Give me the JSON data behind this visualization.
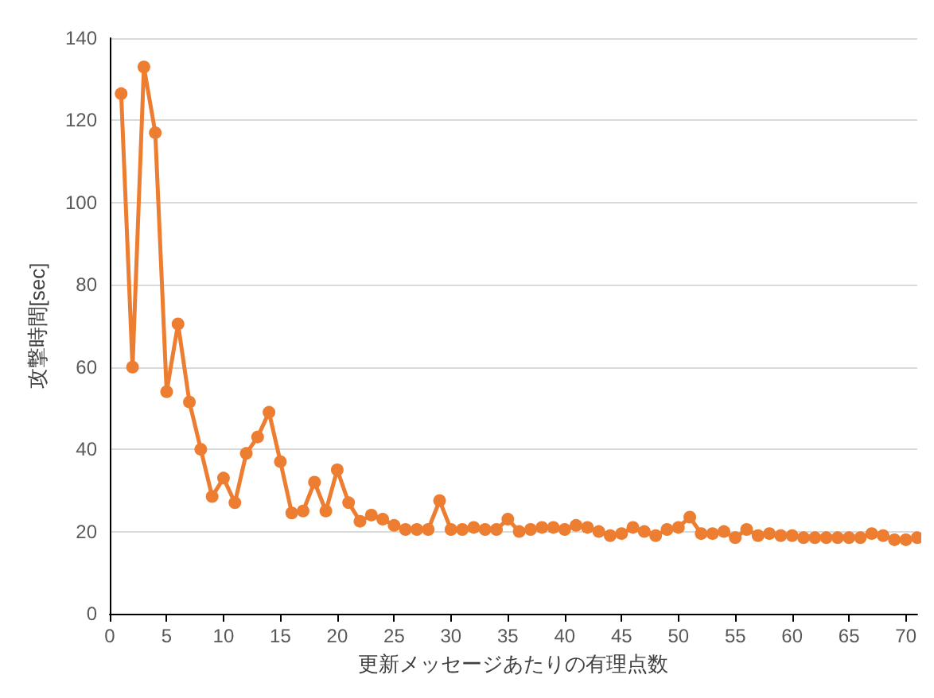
{
  "chart_data": {
    "type": "line",
    "xlabel": "更新メッセージあたりの有理点数",
    "ylabel": "攻撃時間[sec]",
    "x": [
      1,
      2,
      3,
      4,
      5,
      6,
      7,
      8,
      9,
      10,
      11,
      12,
      13,
      14,
      15,
      16,
      17,
      18,
      19,
      20,
      21,
      22,
      23,
      24,
      25,
      26,
      27,
      28,
      29,
      30,
      31,
      32,
      33,
      34,
      35,
      36,
      37,
      38,
      39,
      40,
      41,
      42,
      43,
      44,
      45,
      46,
      47,
      48,
      49,
      50,
      51,
      52,
      53,
      54,
      55,
      56,
      57,
      58,
      59,
      60,
      61,
      62,
      63,
      64,
      65,
      66,
      67,
      68,
      69,
      70,
      71
    ],
    "series": [
      {
        "color": "#ed7d31",
        "values": [
          126.5,
          60,
          133,
          117,
          54,
          70.5,
          51.5,
          40,
          28.5,
          33,
          27,
          39,
          43,
          49,
          37,
          24.5,
          25,
          32,
          25,
          35,
          27,
          22.5,
          24,
          23,
          21.5,
          20.5,
          20.5,
          20.5,
          27.5,
          20.5,
          20.5,
          21,
          20.5,
          20.5,
          23,
          20,
          20.5,
          21,
          21,
          20.5,
          21.5,
          21,
          20,
          19,
          19.5,
          21,
          20,
          19,
          20.5,
          21,
          23.5,
          19.5,
          19.5,
          20,
          18.5,
          20.5,
          19,
          19.5,
          19,
          19,
          18.5,
          18.5,
          18.5,
          18.5,
          18.5,
          18.5,
          19.5,
          19,
          18,
          18,
          18.5
        ]
      }
    ],
    "xlim": [
      0,
      71
    ],
    "xticks": [
      0,
      5,
      10,
      15,
      20,
      25,
      30,
      35,
      40,
      45,
      50,
      55,
      60,
      65,
      70
    ],
    "ylim": [
      0,
      140
    ],
    "yticks": [
      0,
      20,
      40,
      60,
      80,
      100,
      120,
      140
    ],
    "grid": "y",
    "marker": "circle",
    "line_style": "solid"
  }
}
